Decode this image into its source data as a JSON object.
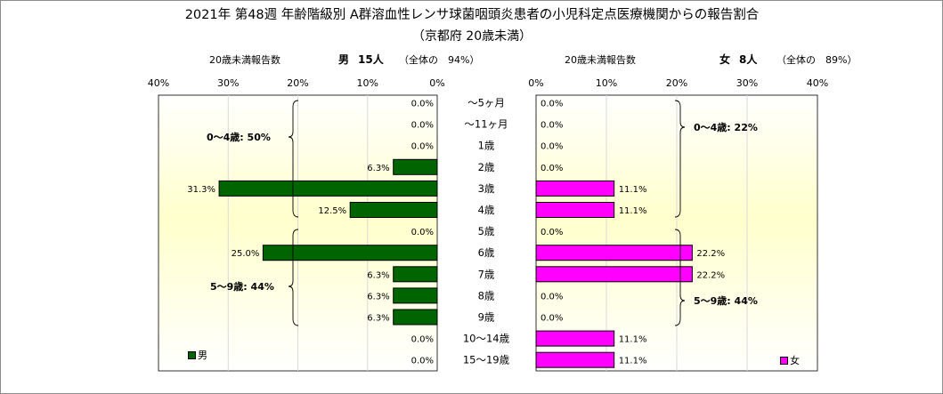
{
  "title": "2021年 第48週 年齢階級別 A群溶血性レンサ球菌咽頭炎患者の小児科定点医療機関からの報告割合",
  "subtitle": "（京都府 20歳未満）",
  "left_panel": {
    "header_label": "20歳未満報告数",
    "sex_label": "男",
    "count_label": "15人",
    "share_label": "（全体の　94%）",
    "legend_label": "男",
    "group_labels": [
      "0〜4歳: 50%",
      "5〜9歳: 44%"
    ]
  },
  "right_panel": {
    "header_label": "20歳未満報告数",
    "sex_label": "女",
    "count_label": "8人",
    "share_label": "（全体の　89%）",
    "legend_label": "女",
    "group_labels": [
      "0〜4歳: 22%",
      "5〜9歳: 44%"
    ]
  },
  "colors": {
    "male": "#006400",
    "female": "#ff00ff",
    "grid": "#d9d9d9"
  },
  "chart_data": {
    "type": "bar",
    "orientation": "horizontal-butterfly",
    "categories": [
      "〜5ヶ月",
      "〜11ヶ月",
      "1歳",
      "2歳",
      "3歳",
      "4歳",
      "5歳",
      "6歳",
      "7歳",
      "8歳",
      "9歳",
      "10〜14歳",
      "15〜19歳"
    ],
    "series": [
      {
        "name": "男",
        "values": [
          0.0,
          0.0,
          0.0,
          6.3,
          31.3,
          12.5,
          0.0,
          25.0,
          6.3,
          6.3,
          6.3,
          0.0,
          0.0
        ]
      },
      {
        "name": "女",
        "values": [
          0.0,
          0.0,
          0.0,
          0.0,
          11.1,
          11.1,
          0.0,
          22.2,
          22.2,
          0.0,
          0.0,
          11.1,
          11.1
        ]
      }
    ],
    "xlim": [
      0,
      40
    ],
    "xticks": [
      "0%",
      "10%",
      "20%",
      "30%",
      "40%"
    ],
    "unit": "%",
    "grid": true
  }
}
